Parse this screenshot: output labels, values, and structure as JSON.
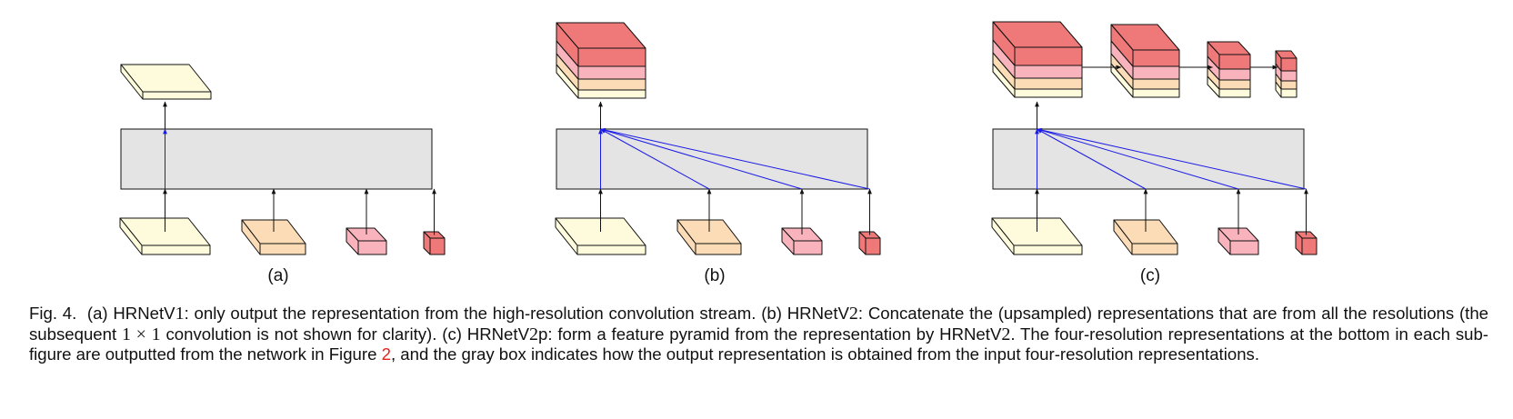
{
  "colors": {
    "level1": "#fdfbdc",
    "level2": "#fcdcb6",
    "level3": "#f8b3bc",
    "level4": "#ef7878",
    "graybox": "#e4e4e4",
    "blue_arrow": "#1a1ae6",
    "black_arrow": "#111111",
    "link": "#e8231c"
  },
  "figure": {
    "sublabels": [
      "(a)",
      "(b)",
      "(c)"
    ]
  },
  "caption": {
    "prefix": "Fig. 4.",
    "a_label": "(a) HRNetV",
    "a_num": "1",
    "a_text": ": only output the representation from the high-resolution convolution stream.",
    "b_label": "(b) HRNetV",
    "b_num": "2",
    "b_text": ": Concatenate the (upsampled) representations that are from all the resolutions (the subsequent",
    "conv_size": "1 × 1",
    "b_text2": "convolution is not shown for clarity).",
    "c_label": "(c) HRNetV",
    "c_num": "2",
    "c_suffix": "p",
    "c_text": ": form a feature pyramid from the representation by HRNetV",
    "c_num2": "2",
    "c_text2": ". The four-resolution representations at the bottom in each sub-figure are outputted from the network in Figure",
    "figure_ref": "2",
    "c_text3": ", and the gray box indicates how the output representation is obtained from the input four-resolution representations."
  }
}
